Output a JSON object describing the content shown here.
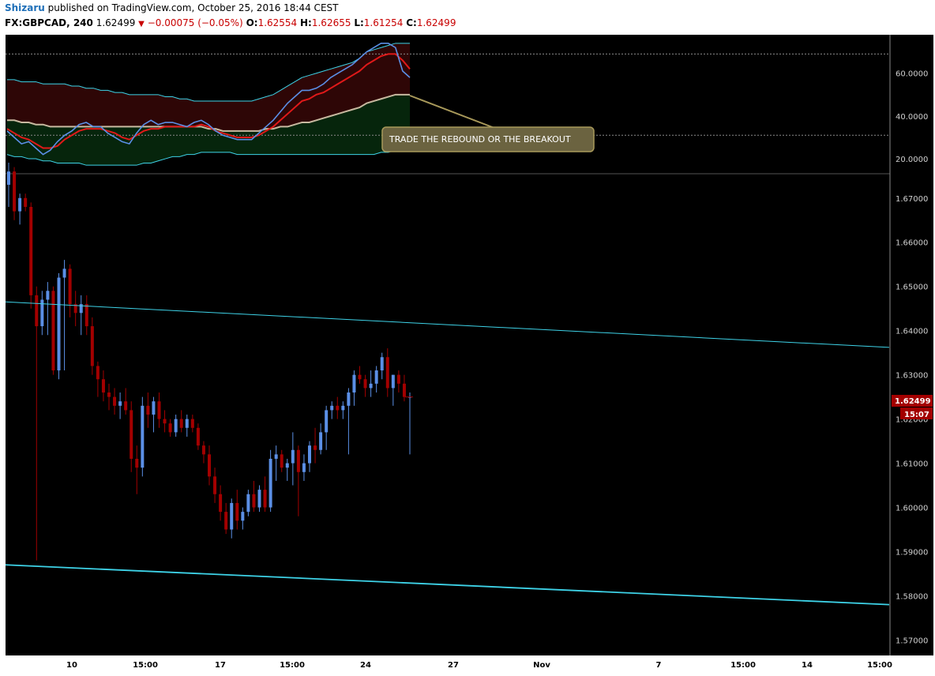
{
  "header": {
    "author": "Shizaru",
    "published_text": " published on TradingView.com, October 25, 2016 18:44 CEST",
    "symbol": "FX:GBPCAD, 240",
    "last": "1.62499",
    "change": "−0.00075 (−0.05%)",
    "o_label": "O:",
    "o_value": "1.62554",
    "h_label": "H:",
    "h_value": "1.62655",
    "l_label": "L:",
    "l_value": "1.61254",
    "c_label": "C:",
    "c_value": "1.62499"
  },
  "annotation": "TRADE THE REBOUND OR THE BREAKOUT",
  "price_tag": {
    "price": "1.62499",
    "countdown": "15:07"
  },
  "chart_data": [
    {
      "type": "line",
      "panel": "indicator",
      "y_ticks": [
        "60.0000",
        "40.0000",
        "20.0000"
      ],
      "ylim": [
        13,
        78
      ],
      "series": [
        {
          "values": [
            33,
            30,
            27,
            28,
            25,
            22,
            24,
            28,
            31,
            33,
            36,
            37,
            35,
            35,
            32,
            30,
            28,
            27,
            32,
            36,
            38,
            36,
            37,
            37,
            36,
            35,
            37,
            38,
            36,
            33,
            31,
            30,
            29,
            29,
            29,
            32,
            35,
            38,
            42,
            46,
            49,
            52,
            52,
            53,
            55,
            58,
            60,
            62,
            64,
            67,
            70,
            72,
            74,
            74,
            72,
            61,
            58
          ]
        },
        {
          "values": [
            34,
            32,
            30,
            29,
            27,
            25,
            25,
            26,
            29,
            31,
            33,
            34,
            34,
            34,
            33,
            32,
            30,
            29,
            31,
            33,
            34,
            34,
            35,
            35,
            35,
            35,
            35,
            36,
            35,
            33,
            32,
            31,
            30,
            30,
            30,
            31,
            33,
            35,
            38,
            41,
            44,
            47,
            48,
            50,
            51,
            53,
            55,
            57,
            59,
            61,
            64,
            66,
            68,
            69,
            69,
            66,
            62
          ]
        },
        {
          "values": [
            38,
            38,
            37,
            37,
            36,
            36,
            35,
            35,
            35,
            35,
            35,
            35,
            35,
            35,
            35,
            35,
            35,
            35,
            35,
            35,
            35,
            35,
            35,
            35,
            35,
            35,
            35,
            35,
            34,
            34,
            33,
            33,
            33,
            33,
            33,
            33,
            34,
            34,
            35,
            35,
            36,
            37,
            37,
            38,
            39,
            40,
            41,
            42,
            43,
            44,
            46,
            47,
            48,
            49,
            50,
            50,
            50
          ]
        },
        {
          "values": [
            57,
            57,
            56,
            56,
            56,
            55,
            55,
            55,
            55,
            54,
            54,
            53,
            53,
            52,
            52,
            51,
            51,
            50,
            50,
            50,
            50,
            50,
            49,
            49,
            48,
            48,
            47,
            47,
            47,
            47,
            47,
            47,
            47,
            47,
            47,
            48,
            49,
            50,
            52,
            54,
            56,
            58,
            59,
            60,
            61,
            62,
            63,
            64,
            65,
            67,
            70,
            71,
            72,
            73,
            74,
            74,
            74
          ]
        },
        {
          "values": [
            22,
            21,
            21,
            20,
            20,
            19,
            19,
            18,
            18,
            18,
            18,
            17,
            17,
            17,
            17,
            17,
            17,
            17,
            17,
            18,
            18,
            19,
            20,
            21,
            21,
            22,
            22,
            23,
            23,
            23,
            23,
            23,
            22,
            22,
            22,
            22,
            22,
            22,
            22,
            22,
            22,
            22,
            22,
            22,
            22,
            22,
            22,
            22,
            22,
            22,
            22,
            22,
            23,
            23,
            24,
            25,
            25
          ]
        }
      ],
      "levels": [
        69,
        31
      ]
    },
    {
      "type": "candlestick",
      "panel": "price",
      "symbol": "FX:GBPCAD",
      "interval": "240",
      "y_ticks": [
        "1.67000",
        "1.66000",
        "1.65000",
        "1.64000",
        "1.63000",
        "1.62000",
        "1.61000",
        "1.60000",
        "1.59000",
        "1.58000",
        "1.57000"
      ],
      "ylim": [
        1.5665,
        1.6755
      ],
      "x_ticks": [
        "10",
        "15:00",
        "17",
        "15:00",
        "24",
        "27",
        "Nov",
        "7",
        "15:00",
        "14",
        "15:00"
      ],
      "ohlc": [
        [
          1.673,
          1.678,
          1.668,
          1.676
        ],
        [
          1.676,
          1.677,
          1.665,
          1.667
        ],
        [
          1.667,
          1.671,
          1.664,
          1.67
        ],
        [
          1.67,
          1.671,
          1.667,
          1.668
        ],
        [
          1.668,
          1.669,
          1.645,
          1.648
        ],
        [
          1.648,
          1.65,
          1.588,
          1.641
        ],
        [
          1.641,
          1.649,
          1.639,
          1.647
        ],
        [
          1.647,
          1.651,
          1.639,
          1.649
        ],
        [
          1.649,
          1.65,
          1.63,
          1.631
        ],
        [
          1.631,
          1.653,
          1.629,
          1.652
        ],
        [
          1.652,
          1.656,
          1.631,
          1.654
        ],
        [
          1.654,
          1.655,
          1.643,
          1.646
        ],
        [
          1.646,
          1.649,
          1.641,
          1.644
        ],
        [
          1.644,
          1.648,
          1.639,
          1.646
        ],
        [
          1.646,
          1.648,
          1.639,
          1.641
        ],
        [
          1.641,
          1.643,
          1.63,
          1.632
        ],
        [
          1.632,
          1.633,
          1.625,
          1.629
        ],
        [
          1.629,
          1.631,
          1.624,
          1.626
        ],
        [
          1.626,
          1.628,
          1.622,
          1.625
        ],
        [
          1.625,
          1.627,
          1.621,
          1.623
        ],
        [
          1.623,
          1.626,
          1.62,
          1.624
        ],
        [
          1.624,
          1.627,
          1.621,
          1.622
        ],
        [
          1.622,
          1.624,
          1.608,
          1.611
        ],
        [
          1.611,
          1.614,
          1.603,
          1.609
        ],
        [
          1.609,
          1.625,
          1.607,
          1.623
        ],
        [
          1.623,
          1.626,
          1.618,
          1.621
        ],
        [
          1.621,
          1.625,
          1.617,
          1.624
        ],
        [
          1.624,
          1.626,
          1.618,
          1.62
        ],
        [
          1.62,
          1.622,
          1.617,
          1.619
        ],
        [
          1.619,
          1.62,
          1.616,
          1.617
        ],
        [
          1.617,
          1.621,
          1.616,
          1.62
        ],
        [
          1.62,
          1.622,
          1.617,
          1.618
        ],
        [
          1.618,
          1.621,
          1.616,
          1.62
        ],
        [
          1.62,
          1.621,
          1.617,
          1.618
        ],
        [
          1.618,
          1.619,
          1.613,
          1.614
        ],
        [
          1.614,
          1.615,
          1.61,
          1.612
        ],
        [
          1.612,
          1.614,
          1.605,
          1.607
        ],
        [
          1.607,
          1.609,
          1.601,
          1.603
        ],
        [
          1.603,
          1.605,
          1.597,
          1.599
        ],
        [
          1.599,
          1.601,
          1.594,
          1.595
        ],
        [
          1.595,
          1.602,
          1.593,
          1.601
        ],
        [
          1.601,
          1.604,
          1.595,
          1.597
        ],
        [
          1.597,
          1.6,
          1.595,
          1.599
        ],
        [
          1.599,
          1.604,
          1.598,
          1.603
        ],
        [
          1.603,
          1.606,
          1.599,
          1.6
        ],
        [
          1.6,
          1.605,
          1.599,
          1.604
        ],
        [
          1.604,
          1.607,
          1.599,
          1.6
        ],
        [
          1.6,
          1.613,
          1.599,
          1.611
        ],
        [
          1.611,
          1.614,
          1.606,
          1.612
        ],
        [
          1.612,
          1.613,
          1.608,
          1.609
        ],
        [
          1.609,
          1.611,
          1.606,
          1.61
        ],
        [
          1.61,
          1.617,
          1.605,
          1.613
        ],
        [
          1.613,
          1.614,
          1.598,
          1.608
        ],
        [
          1.608,
          1.612,
          1.606,
          1.61
        ],
        [
          1.61,
          1.615,
          1.608,
          1.614
        ],
        [
          1.614,
          1.618,
          1.61,
          1.613
        ],
        [
          1.613,
          1.619,
          1.612,
          1.617
        ],
        [
          1.617,
          1.623,
          1.613,
          1.622
        ],
        [
          1.622,
          1.624,
          1.62,
          1.623
        ],
        [
          1.623,
          1.625,
          1.62,
          1.622
        ],
        [
          1.622,
          1.624,
          1.62,
          1.623
        ],
        [
          1.623,
          1.627,
          1.612,
          1.626
        ],
        [
          1.626,
          1.631,
          1.623,
          1.63
        ],
        [
          1.63,
          1.632,
          1.628,
          1.629
        ],
        [
          1.629,
          1.63,
          1.625,
          1.627
        ],
        [
          1.627,
          1.631,
          1.625,
          1.628
        ],
        [
          1.628,
          1.632,
          1.626,
          1.631
        ],
        [
          1.631,
          1.635,
          1.629,
          1.634
        ],
        [
          1.634,
          1.636,
          1.625,
          1.627
        ],
        [
          1.627,
          1.63,
          1.623,
          1.63
        ],
        [
          1.63,
          1.631,
          1.626,
          1.628
        ],
        [
          1.628,
          1.63,
          1.624,
          1.625
        ],
        [
          1.625,
          1.626,
          1.612,
          1.625
        ]
      ],
      "trendlines": [
        {
          "from": [
            "start",
            1.6465
          ],
          "to": [
            "end",
            1.6362
          ]
        },
        {
          "from": [
            "start",
            1.587
          ],
          "to": [
            "end",
            1.578
          ]
        }
      ],
      "last_price": 1.62499
    }
  ],
  "colors": {
    "background": "#000000",
    "up": "#5b8fe6",
    "down": "#a30000",
    "axis_text": "#d0d0d0",
    "trendline": "#3ed3e8",
    "rsi": "#5b8fe6",
    "signal": "#e01919",
    "mid": "#c8b9a0",
    "band": "#3ed3e8",
    "annotation_bg": "#6b6340",
    "annotation_border": "#a8995a",
    "price_tag": "#a30000"
  }
}
